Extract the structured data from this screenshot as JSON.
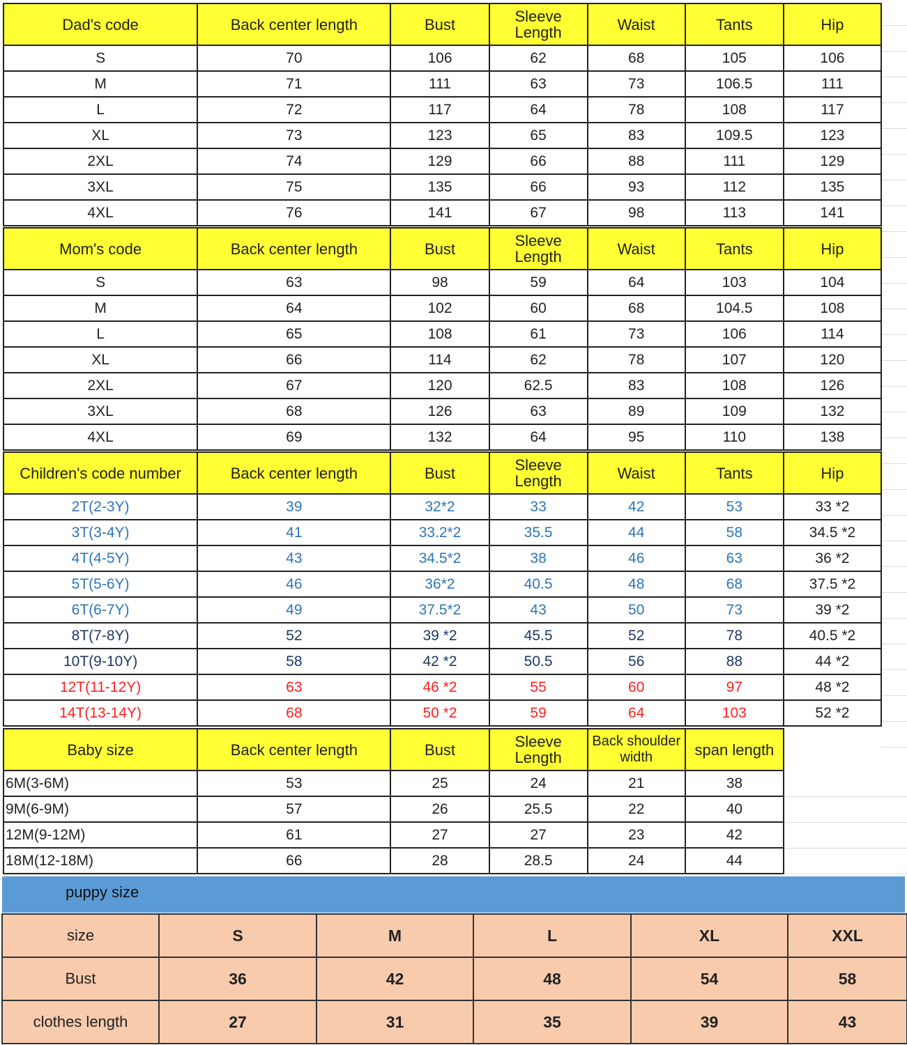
{
  "dad": {
    "headers": [
      "Dad's code",
      "Back center length",
      "Bust",
      "Sleeve Length",
      "Waist",
      "Tants",
      "Hip"
    ],
    "rows": [
      [
        "S",
        "70",
        "106",
        "62",
        "68",
        "105",
        "106"
      ],
      [
        "M",
        "71",
        "111",
        "63",
        "73",
        "106.5",
        "111"
      ],
      [
        "L",
        "72",
        "117",
        "64",
        "78",
        "108",
        "117"
      ],
      [
        "XL",
        "73",
        "123",
        "65",
        "83",
        "109.5",
        "123"
      ],
      [
        "2XL",
        "74",
        "129",
        "66",
        "88",
        "111",
        "129"
      ],
      [
        "3XL",
        "75",
        "135",
        "66",
        "93",
        "112",
        "135"
      ],
      [
        "4XL",
        "76",
        "141",
        "67",
        "98",
        "113",
        "141"
      ]
    ]
  },
  "mom": {
    "headers": [
      "Mom's code",
      "Back center length",
      "Bust",
      "Sleeve Length",
      "Waist",
      "Tants",
      "Hip"
    ],
    "rows": [
      [
        "S",
        "63",
        "98",
        "59",
        "64",
        "103",
        "104"
      ],
      [
        "M",
        "64",
        "102",
        "60",
        "68",
        "104.5",
        "108"
      ],
      [
        "L",
        "65",
        "108",
        "61",
        "73",
        "106",
        "114"
      ],
      [
        "XL",
        "66",
        "114",
        "62",
        "78",
        "107",
        "120"
      ],
      [
        "2XL",
        "67",
        "120",
        "62.5",
        "83",
        "108",
        "126"
      ],
      [
        "3XL",
        "68",
        "126",
        "63",
        "89",
        "109",
        "132"
      ],
      [
        "4XL",
        "69",
        "132",
        "64",
        "95",
        "110",
        "138"
      ]
    ]
  },
  "children": {
    "headers": [
      "Children's code number",
      "Back center length",
      "Bust",
      "Sleeve Length",
      "Waist",
      "Tants",
      "Hip"
    ],
    "rows": [
      [
        "2T(2-3Y)",
        "39",
        "32*2",
        "33",
        "42",
        "53",
        "33 *2"
      ],
      [
        "3T(3-4Y)",
        "41",
        "33.2*2",
        "35.5",
        "44",
        "58",
        "34.5 *2"
      ],
      [
        "4T(4-5Y)",
        "43",
        "34.5*2",
        "38",
        "46",
        "63",
        "36 *2"
      ],
      [
        "5T(5-6Y)",
        "46",
        "36*2",
        "40.5",
        "48",
        "68",
        "37.5 *2"
      ],
      [
        "6T(6-7Y)",
        "49",
        "37.5*2",
        "43",
        "50",
        "73",
        "39 *2"
      ],
      [
        "8T(7-8Y)",
        "52",
        "39 *2",
        "45.5",
        "52",
        "78",
        "40.5 *2"
      ],
      [
        "10T(9-10Y)",
        "58",
        "42 *2",
        "50.5",
        "56",
        "88",
        "44 *2"
      ],
      [
        "12T(11-12Y)",
        "63",
        "46 *2",
        "55",
        "60",
        "97",
        "48 *2"
      ],
      [
        "14T(13-14Y)",
        "68",
        "50 *2",
        "59",
        "64",
        "103",
        "52 *2"
      ]
    ],
    "row_colors": [
      "#2e75b6",
      "#2e75b6",
      "#2e75b6",
      "#2e75b6",
      "#2e75b6",
      "#1f3864",
      "#1f3864",
      "#ff2020",
      "#ff2020"
    ],
    "last_column_color": "#222222"
  },
  "baby": {
    "headers": [
      "Baby size",
      "Back center length",
      "Bust",
      "Sleeve Length",
      "Back shoulder width",
      "span length"
    ],
    "rows": [
      [
        "6M(3-6M)",
        "53",
        "25",
        "24",
        "21",
        "38"
      ],
      [
        "9M(6-9M)",
        "57",
        "26",
        "25.5",
        "22",
        "40"
      ],
      [
        "12M(9-12M)",
        "61",
        "27",
        "27",
        "23",
        "42"
      ],
      [
        "18M(12-18M)",
        "66",
        "28",
        "28.5",
        "24",
        "44"
      ]
    ]
  },
  "puppy": {
    "title": "puppy size",
    "rows": [
      [
        "size",
        "S",
        "M",
        "L",
        "XL",
        "XXL"
      ],
      [
        "Bust",
        "36",
        "42",
        "48",
        "54",
        "58"
      ],
      [
        "clothes length",
        "27",
        "31",
        "35",
        "39",
        "43"
      ]
    ]
  },
  "colors": {
    "header_yellow": "#ffff33",
    "puppy_band": "#5b9bd5",
    "puppy_cells": "#f8cbad"
  }
}
